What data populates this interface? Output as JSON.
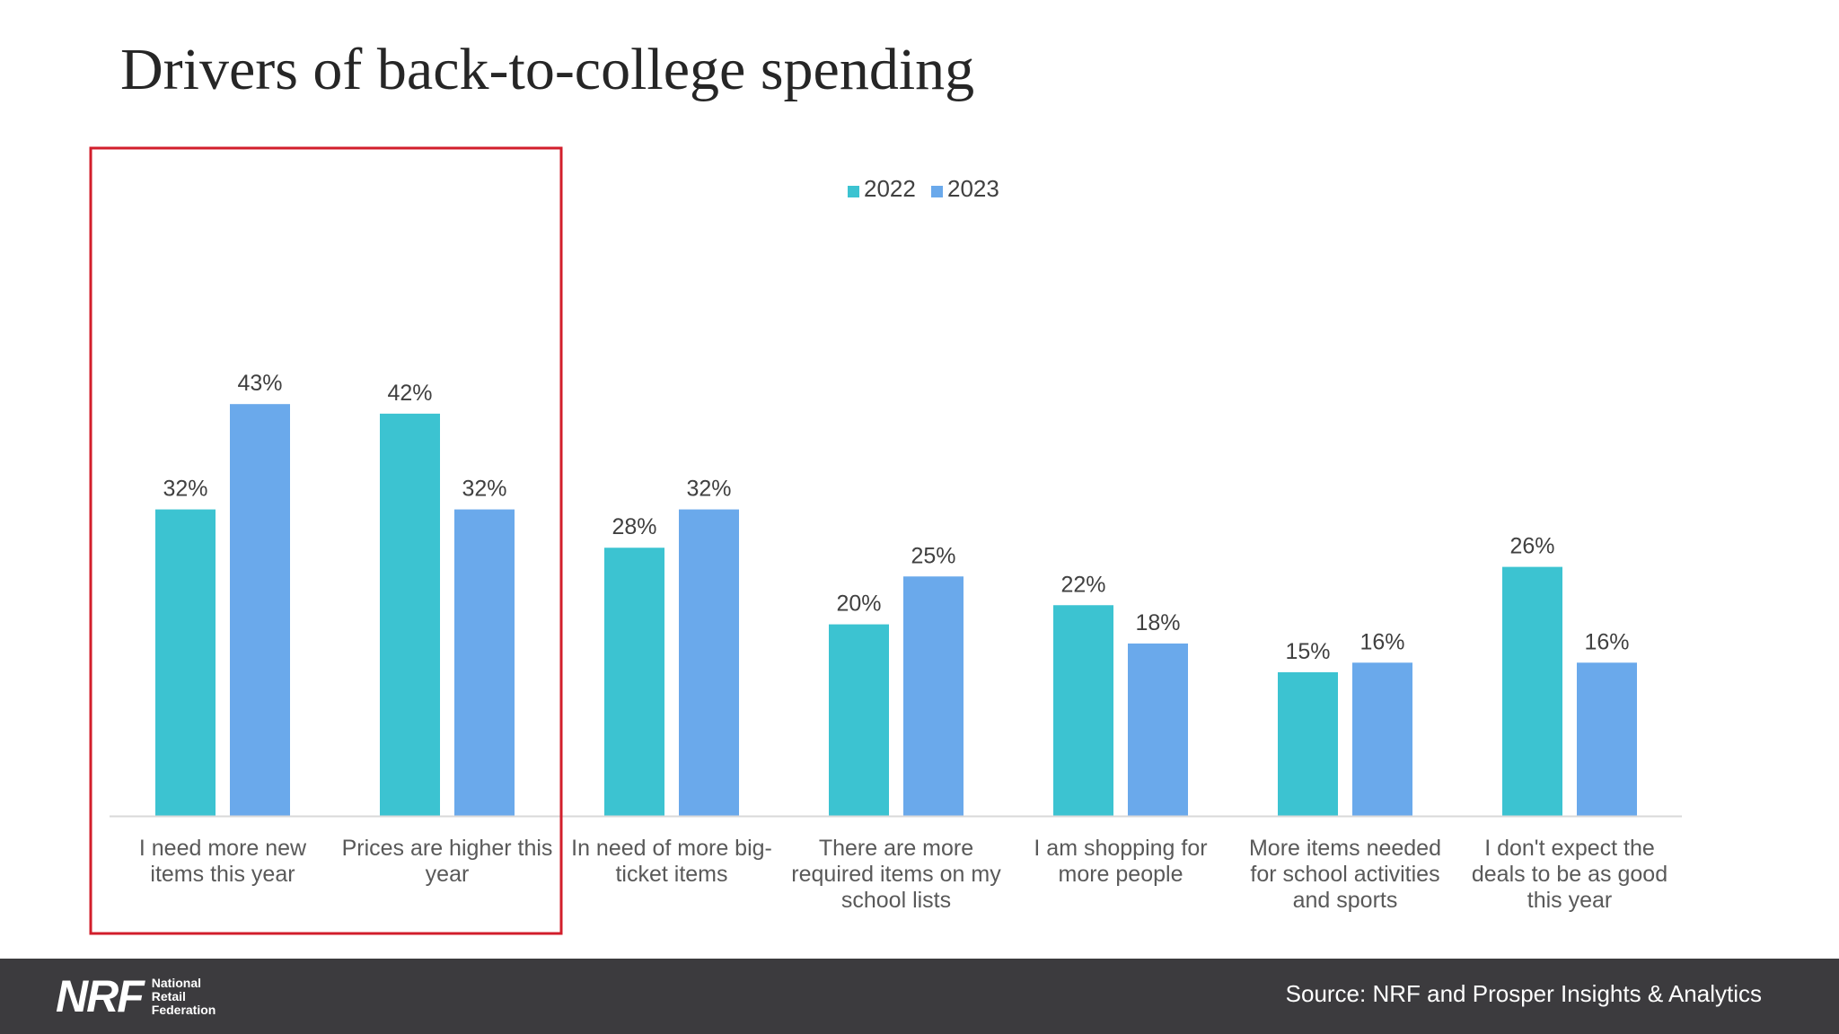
{
  "slide": {
    "title": "Drivers of back-to-college spending",
    "source": "Source: NRF and Prosper Insights & Analytics",
    "logo": {
      "mark": "NRF",
      "lines": [
        "National",
        "Retail",
        "Federation"
      ]
    }
  },
  "chart_data": {
    "type": "bar",
    "title": "",
    "xlabel": "",
    "ylabel": "",
    "ylim": [
      0,
      45
    ],
    "grid": false,
    "legend": "top-center",
    "value_format": "percent",
    "categories": [
      "I need more new items this year",
      "Prices are higher this year",
      "In need of more big-ticket items",
      "There are more required items on my school lists",
      "I am shopping for more people",
      "More items needed for school activities and sports",
      "I don't expect the deals to be as good this year"
    ],
    "category_lines": [
      [
        "I need more new",
        "items this year"
      ],
      [
        "Prices are higher this",
        "year"
      ],
      [
        "In need of more big-",
        "ticket items"
      ],
      [
        "There are more",
        "required items on my",
        "school lists"
      ],
      [
        "I am shopping for",
        "more people"
      ],
      [
        "More items needed",
        "for school activities",
        "and sports"
      ],
      [
        "I don't expect the",
        "deals to be as good",
        "this year"
      ]
    ],
    "data_labels": [
      [
        "32%",
        "43%"
      ],
      [
        "42%",
        "32%"
      ],
      [
        "28%",
        "32%"
      ],
      [
        "20%",
        "25%"
      ],
      [
        "22%",
        "18%"
      ],
      [
        "15%",
        "16%"
      ],
      [
        "26%",
        "16%"
      ]
    ],
    "series": [
      {
        "name": "2022",
        "color": "#3cc3d1",
        "values": [
          32,
          42,
          28,
          20,
          22,
          15,
          26
        ]
      },
      {
        "name": "2023",
        "color": "#6aa9eb",
        "values": [
          43,
          32,
          32,
          25,
          18,
          16,
          16
        ]
      }
    ],
    "highlight": {
      "categories": [
        0,
        1
      ],
      "color": "#d21e2b"
    }
  }
}
